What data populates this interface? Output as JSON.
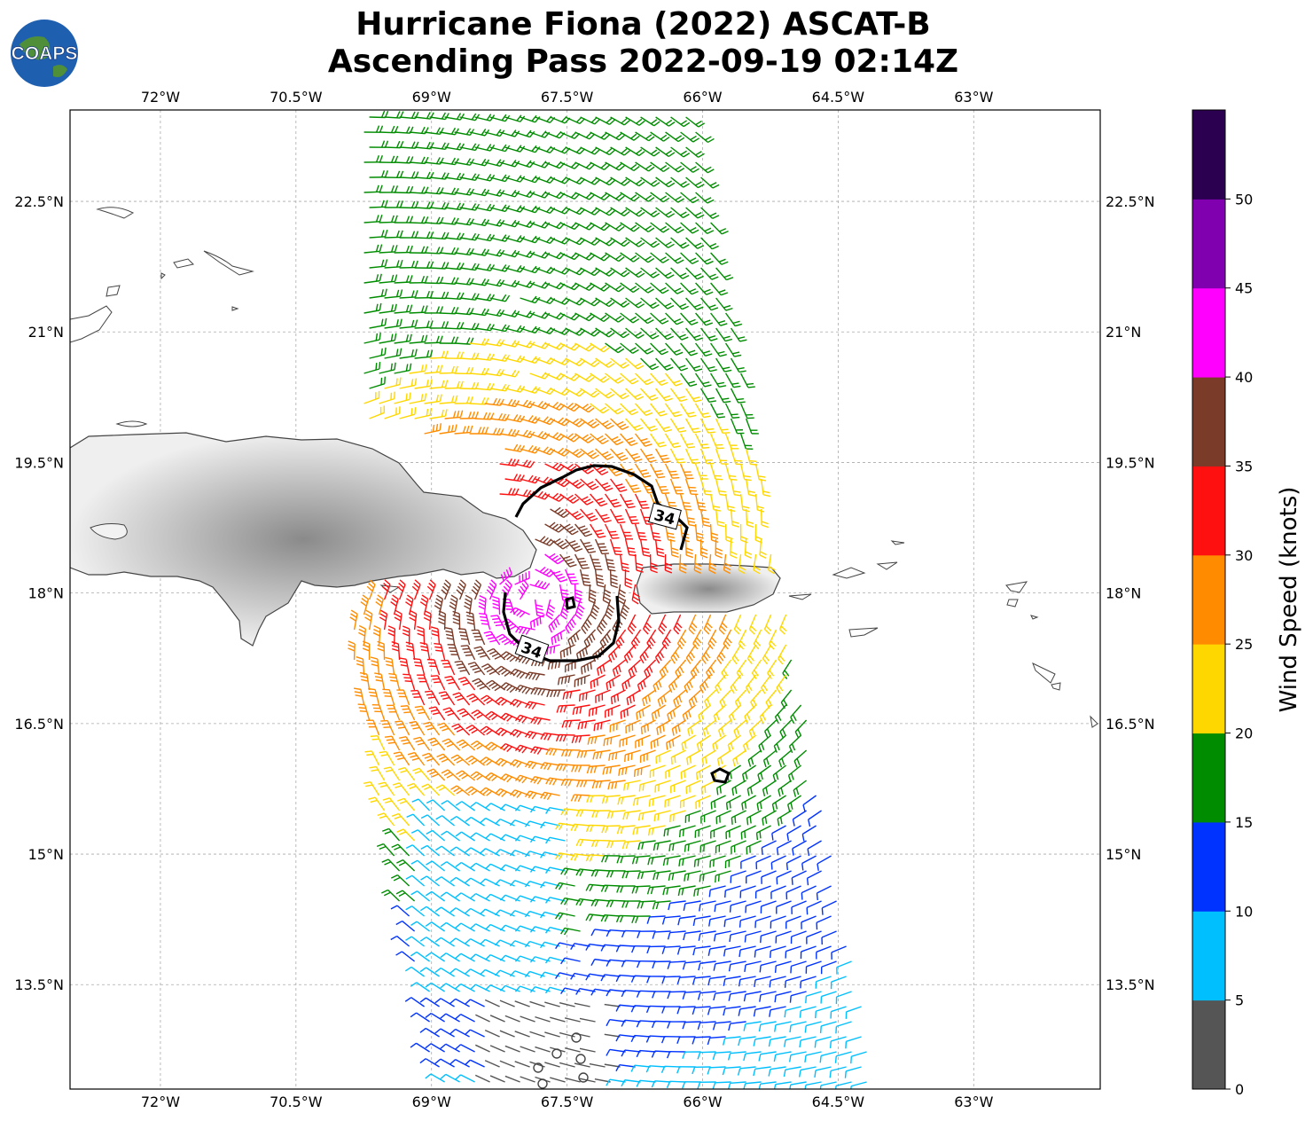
{
  "header": {
    "title_line1": "Hurricane Fiona (2022) ASCAT-B",
    "title_line2": "Ascending Pass 2022-09-19 02:14Z",
    "logo_text": "COAPS"
  },
  "map": {
    "lon_range": [
      -73.0,
      -61.6
    ],
    "lat_range": [
      12.3,
      23.55
    ],
    "lon_ticks": [
      "72°W",
      "70.5°W",
      "69°W",
      "67.5°W",
      "66°W",
      "64.5°W",
      "63°W"
    ],
    "lat_ticks": [
      "22.5°N",
      "21°N",
      "19.5°N",
      "18°N",
      "16.5°N",
      "15°N",
      "13.5°N"
    ],
    "grid": true,
    "contour_label": "34",
    "contour_level_knots": 34,
    "storm_center": {
      "lon": -67.9,
      "lat": 17.9
    }
  },
  "colorbar": {
    "label": "Wind Speed (knots)",
    "ticks": [
      "0",
      "5",
      "10",
      "15",
      "20",
      "25",
      "30",
      "35",
      "40",
      "45",
      "50"
    ],
    "colors": [
      "#555555",
      "#00bfff",
      "#0033ff",
      "#008c00",
      "#ffd700",
      "#ff8c00",
      "#ff1010",
      "#7a3b28",
      "#ff00ff",
      "#8000b0",
      "#2b0050"
    ]
  }
}
